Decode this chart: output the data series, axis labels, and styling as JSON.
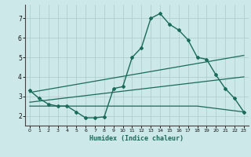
{
  "xlabel": "Humidex (Indice chaleur)",
  "bg_color": "#cce8e8",
  "line_color": "#1a6b5a",
  "xlim": [
    -0.5,
    23.5
  ],
  "ylim": [
    1.5,
    7.7
  ],
  "yticks": [
    2,
    3,
    4,
    5,
    6,
    7
  ],
  "xticks": [
    0,
    1,
    2,
    3,
    4,
    5,
    6,
    7,
    8,
    9,
    10,
    11,
    12,
    13,
    14,
    15,
    16,
    17,
    18,
    19,
    20,
    21,
    22,
    23
  ],
  "line1_x": [
    0,
    1,
    2,
    3,
    4,
    5,
    6,
    7,
    8,
    9,
    10,
    11,
    12,
    13,
    14,
    15,
    16,
    17,
    18,
    19,
    20,
    21,
    22,
    23
  ],
  "line1_y": [
    3.3,
    2.9,
    2.6,
    2.5,
    2.5,
    2.2,
    1.9,
    1.9,
    1.95,
    3.4,
    3.5,
    5.0,
    5.5,
    7.0,
    7.25,
    6.7,
    6.4,
    5.9,
    5.0,
    4.9,
    4.1,
    3.4,
    2.9,
    2.2
  ],
  "line2_x": [
    0,
    23
  ],
  "line2_y": [
    3.2,
    5.1
  ],
  "line3_x": [
    0,
    23
  ],
  "line3_y": [
    2.7,
    4.0
  ],
  "line4_x": [
    0,
    18,
    23
  ],
  "line4_y": [
    2.5,
    2.5,
    2.2
  ]
}
